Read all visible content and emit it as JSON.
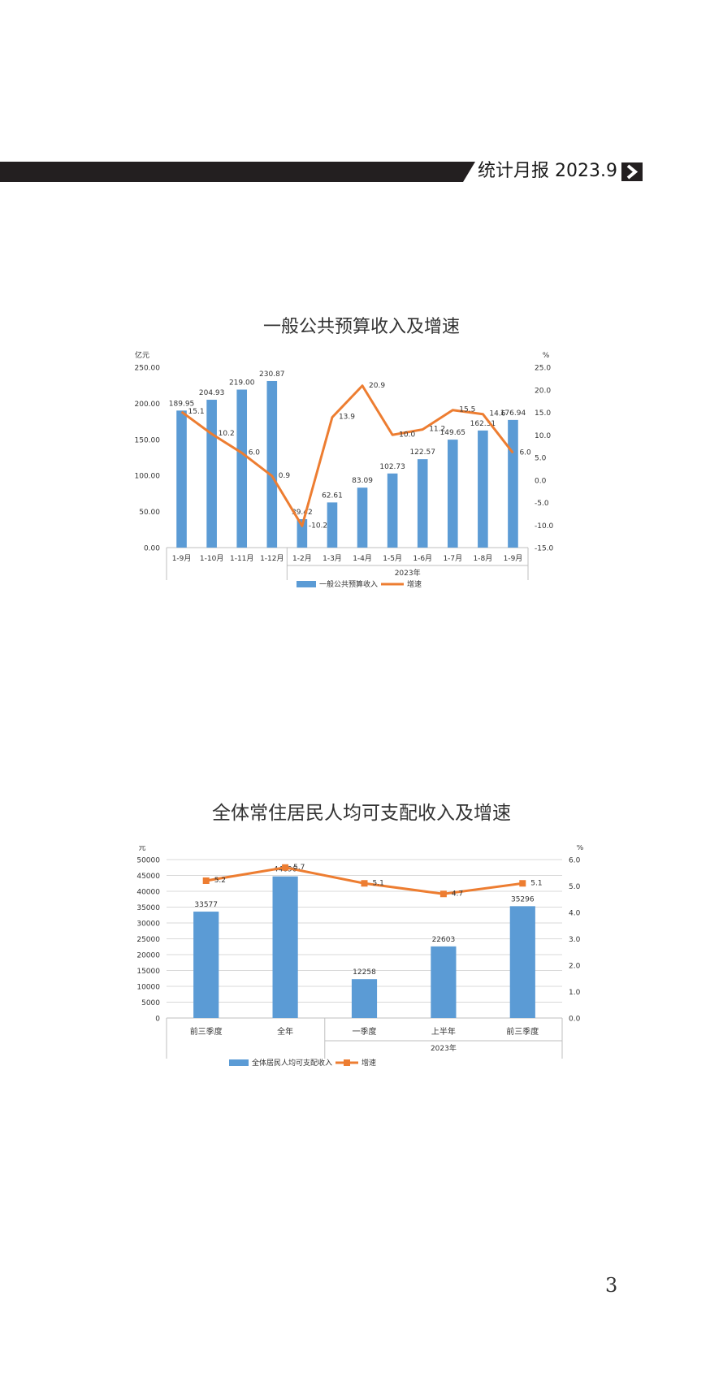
{
  "header": {
    "title": "统计月报 2023.9",
    "chevron_icon": "chevron-right-icon",
    "bar_color": "#231f20"
  },
  "page_number": "3",
  "colors": {
    "bar": "#5b9bd5",
    "line": "#ed7d31",
    "grid": "#d9d9d9",
    "axis": "#bfbfbf"
  },
  "chart_data": [
    {
      "type": "bar+line",
      "title": "一般公共预算收入及增速",
      "ylabel_left": "亿元",
      "ylabel_right": "%",
      "ylim_left": [
        0,
        250
      ],
      "ylim_right": [
        -15,
        25
      ],
      "yticks_left": [
        "0.00",
        "50.00",
        "100.00",
        "150.00",
        "200.00",
        "250.00"
      ],
      "yticks_right": [
        "-15.0",
        "-10.0",
        "-5.0",
        "0.0",
        "5.0",
        "10.0",
        "15.0",
        "20.0",
        "25.0"
      ],
      "categories": [
        "1-9月",
        "1-10月",
        "1-11月",
        "1-12月",
        "1-2月",
        "1-3月",
        "1-4月",
        "1-5月",
        "1-6月",
        "1-7月",
        "1-8月",
        "1-9月"
      ],
      "group_label": "2023年",
      "group_start_index": 4,
      "grid": false,
      "legend_position": "bottom",
      "series": [
        {
          "name": "一般公共预算收入",
          "type": "bar",
          "axis": "left",
          "values": [
            189.95,
            204.93,
            219.0,
            230.87,
            39.42,
            62.61,
            83.09,
            102.73,
            122.57,
            149.65,
            162.31,
            176.94
          ],
          "labels": [
            "189.95",
            "204.93",
            "219.00",
            "230.87",
            "39.42",
            "62.61",
            "83.09",
            "102.73",
            "122.57",
            "149.65",
            "162.31",
            "176.94"
          ]
        },
        {
          "name": "增速",
          "type": "line",
          "axis": "right",
          "values": [
            15.1,
            10.2,
            6.0,
            0.9,
            -10.2,
            13.9,
            20.9,
            10.0,
            11.2,
            15.5,
            14.6,
            6.0
          ],
          "labels": [
            "15.1",
            "10.2",
            "6.0",
            "0.9",
            "-10.2",
            "13.9",
            "20.9",
            "10.0",
            "11.2",
            "15.5",
            "14.6",
            "6.0"
          ]
        }
      ]
    },
    {
      "type": "bar+line",
      "title": "全体常住居民人均可支配收入及增速",
      "ylabel_left": "元",
      "ylabel_right": "%",
      "ylim_left": [
        0,
        50000
      ],
      "ylim_right": [
        0,
        6
      ],
      "yticks_left": [
        "0",
        "5000",
        "10000",
        "15000",
        "20000",
        "25000",
        "30000",
        "35000",
        "40000",
        "45000",
        "50000"
      ],
      "yticks_right": [
        "0.0",
        "1.0",
        "2.0",
        "3.0",
        "4.0",
        "5.0",
        "6.0"
      ],
      "categories": [
        "前三季度",
        "全年",
        "一季度",
        "上半年",
        "前三季度"
      ],
      "group_label": "2023年",
      "group_start_index": 2,
      "grid": true,
      "legend_position": "bottom",
      "series": [
        {
          "name": "全体居民人均可支配收入",
          "type": "bar",
          "axis": "left",
          "values": [
            33577,
            44696,
            12258,
            22603,
            35296
          ],
          "labels": [
            "33577",
            "44696",
            "12258",
            "22603",
            "35296"
          ]
        },
        {
          "name": "增速",
          "type": "line",
          "axis": "right",
          "values": [
            5.2,
            5.7,
            5.1,
            4.7,
            5.1
          ],
          "labels": [
            "5.2",
            "5.7",
            "5.1",
            "4.7",
            "5.1"
          ]
        }
      ]
    }
  ]
}
